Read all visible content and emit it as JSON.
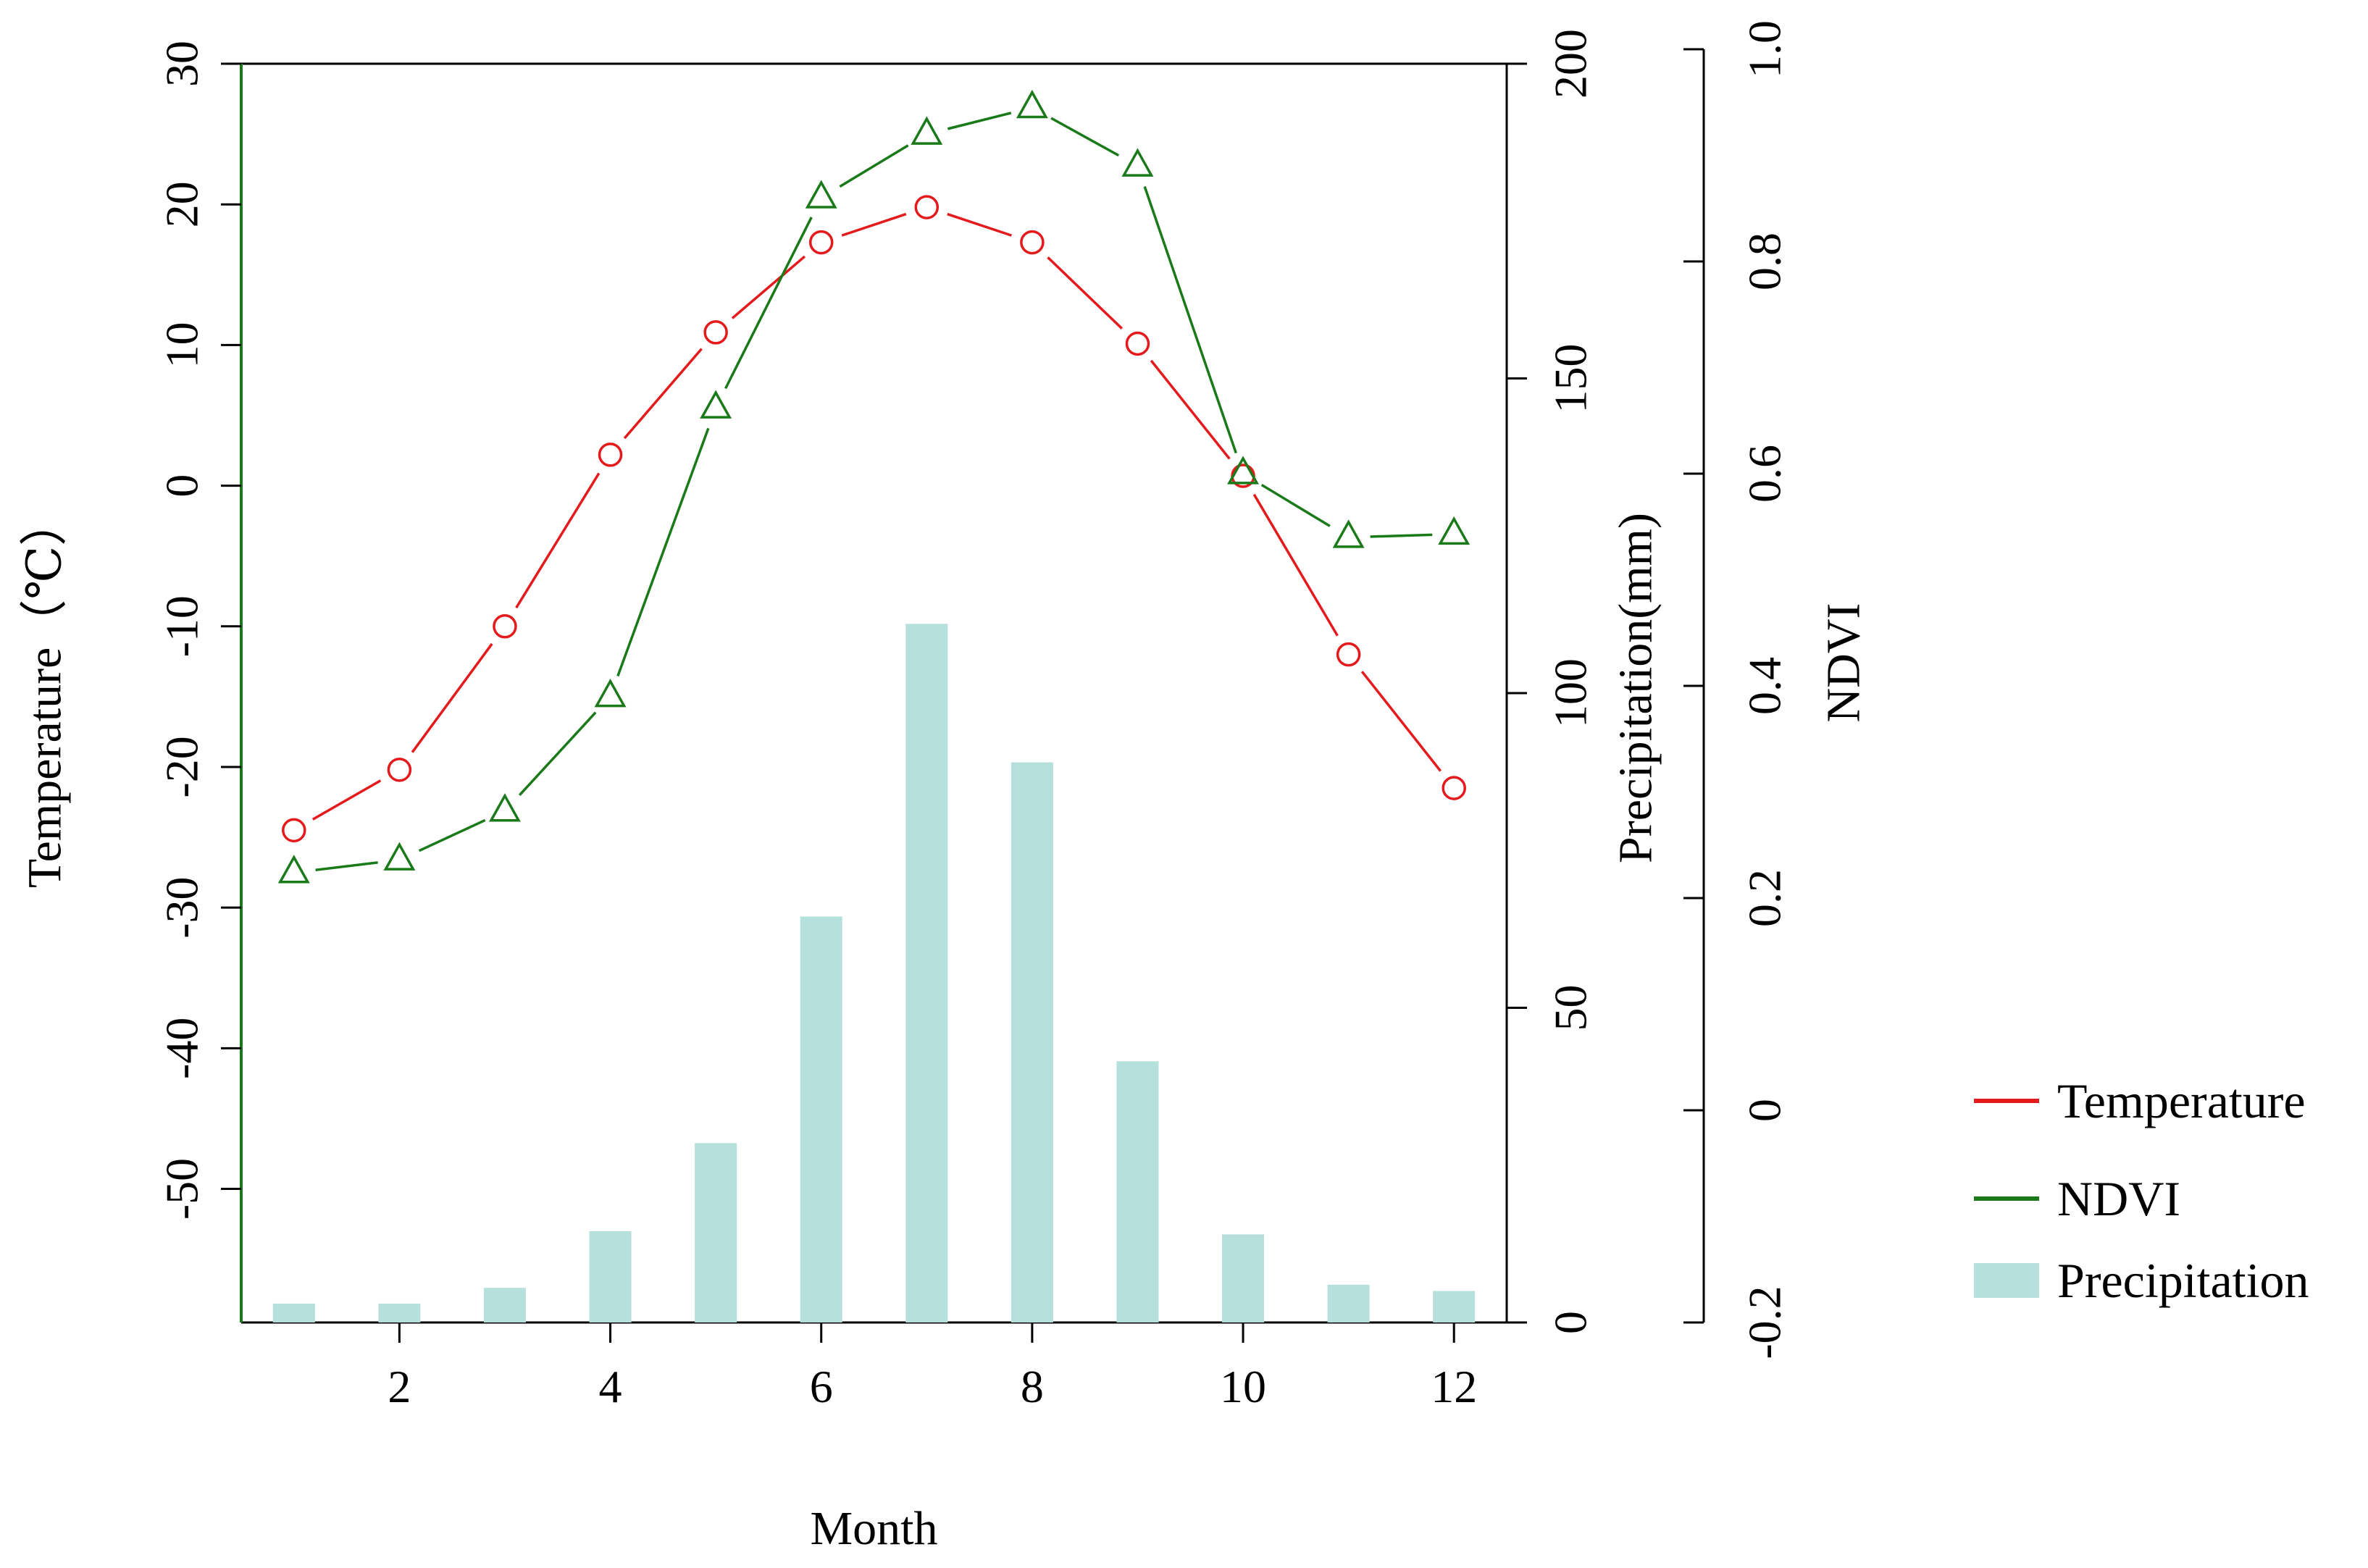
{
  "chart_data": {
    "type": "bar+line",
    "title": "",
    "xlabel": "Month",
    "x": [
      1,
      2,
      3,
      4,
      5,
      6,
      7,
      8,
      9,
      10,
      11,
      12
    ],
    "xticks": [
      2,
      4,
      6,
      8,
      10,
      12
    ],
    "xlim": [
      0.5,
      12.5
    ],
    "series": [
      {
        "name": "Temperature",
        "type": "line",
        "marker": "circle",
        "color": "#e41a1c",
        "axis": "temperature",
        "values": [
          -24.5,
          -20.2,
          -10,
          2.2,
          10.9,
          17.3,
          19.8,
          17.3,
          10.1,
          0.7,
          -12,
          -21.5
        ]
      },
      {
        "name": "NDVI",
        "type": "line",
        "marker": "triangle",
        "color": "#1a7a1a",
        "axis": "ndvi",
        "values": [
          0.224,
          0.236,
          0.282,
          0.39,
          0.662,
          0.86,
          0.92,
          0.945,
          0.89,
          0.6,
          0.54,
          0.543
        ]
      },
      {
        "name": "Precipitation",
        "type": "bar",
        "color": "#b5e0dc",
        "axis": "precipitation",
        "values": [
          3,
          3,
          5.5,
          14.5,
          28.5,
          64.5,
          111,
          89,
          41.5,
          14,
          6,
          5
        ]
      }
    ],
    "axes": {
      "temperature": {
        "label": "Temperature（℃）",
        "position": "left",
        "color": "#1a7a1a",
        "ylim": [
          -59.5,
          30
        ],
        "ticks": [
          30,
          20,
          10,
          0,
          -10,
          -20,
          -30,
          -40,
          -50
        ],
        "tick_labels": [
          "30",
          "20",
          "10",
          "0",
          "-10",
          "-20",
          "-30",
          "-40",
          "-50"
        ]
      },
      "precipitation": {
        "label": "Precipitation(mm)",
        "position": "right",
        "ylim": [
          0,
          200
        ],
        "ticks": [
          200,
          150,
          100,
          50,
          0
        ],
        "tick_labels": [
          "200",
          "150",
          "100",
          "50",
          "0"
        ]
      },
      "ndvi": {
        "label": "NDVI",
        "position": "far-right",
        "ylim": [
          -0.2,
          1.0
        ],
        "ticks": [
          1.0,
          0.8,
          0.6,
          0.4,
          0.2,
          0,
          -0.2
        ],
        "tick_labels": [
          "1.0",
          "0.8",
          "0.6",
          "0.4",
          "0.2",
          "0",
          "-0.2"
        ]
      }
    },
    "legend": {
      "position": "right",
      "entries": [
        "Temperature",
        "NDVI",
        "Precipitation"
      ]
    }
  }
}
